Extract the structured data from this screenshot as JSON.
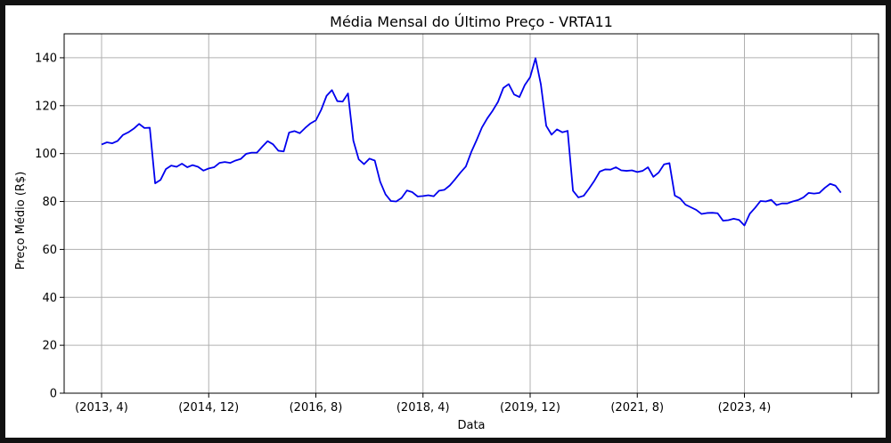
{
  "chart_data": {
    "type": "line",
    "title": "Média Mensal do Último Preço - VRTA11",
    "xlabel": "Data",
    "ylabel": "Preço Médio (R$)",
    "ylim": [
      0,
      150
    ],
    "yticks": [
      0,
      20,
      40,
      60,
      80,
      100,
      120,
      140
    ],
    "xticks": [
      "(2013, 4)",
      "(2014, 12)",
      "(2016, 8)",
      "(2018, 4)",
      "(2019, 12)",
      "(2021, 8)",
      "(2023, 4)",
      ""
    ],
    "grid": true,
    "legend": "none",
    "colors": {
      "line": "#0000ee",
      "grid": "#b0b0b0",
      "background": "#ffffff",
      "frame": "#111111"
    },
    "series": [
      {
        "x": [
          "2013-04",
          "2013-05",
          "2013-06",
          "2013-07",
          "2013-08",
          "2013-09",
          "2013-10",
          "2013-11",
          "2013-12",
          "2014-01",
          "2014-02",
          "2014-03",
          "2014-04",
          "2014-05",
          "2014-06",
          "2014-07",
          "2014-08",
          "2014-09",
          "2014-10",
          "2014-11",
          "2014-12",
          "2015-01",
          "2015-02",
          "2015-03",
          "2015-04",
          "2015-05",
          "2015-06",
          "2015-07",
          "2015-08",
          "2015-09",
          "2015-10",
          "2015-11",
          "2015-12",
          "2016-01",
          "2016-02",
          "2016-03",
          "2016-04",
          "2016-05",
          "2016-06",
          "2016-07",
          "2016-08",
          "2016-09",
          "2016-10",
          "2016-11",
          "2016-12",
          "2017-01",
          "2017-02",
          "2017-03",
          "2017-04",
          "2017-05",
          "2017-06",
          "2017-07",
          "2017-08",
          "2017-09",
          "2017-10",
          "2017-11",
          "2017-12",
          "2018-01",
          "2018-02",
          "2018-03",
          "2018-04",
          "2018-05",
          "2018-06",
          "2018-07",
          "2018-08",
          "2018-09",
          "2018-10",
          "2018-11",
          "2018-12",
          "2019-01",
          "2019-02",
          "2019-03",
          "2019-04",
          "2019-05",
          "2019-06",
          "2019-07",
          "2019-08",
          "2019-09",
          "2019-10",
          "2019-11",
          "2019-12",
          "2020-01",
          "2020-02",
          "2020-03",
          "2020-04",
          "2020-05",
          "2020-06",
          "2020-07",
          "2020-08",
          "2020-09",
          "2020-10",
          "2020-11",
          "2020-12",
          "2021-01",
          "2021-02",
          "2021-03",
          "2021-04",
          "2021-05",
          "2021-06",
          "2021-07",
          "2021-08",
          "2021-09",
          "2021-10",
          "2021-11",
          "2021-12",
          "2022-01",
          "2022-02",
          "2022-03",
          "2022-04",
          "2022-05",
          "2022-06",
          "2022-07",
          "2022-08",
          "2022-09",
          "2022-10",
          "2022-11",
          "2022-12",
          "2023-01",
          "2023-02",
          "2023-03",
          "2023-04",
          "2023-05",
          "2023-06",
          "2023-07",
          "2023-08",
          "2023-09",
          "2023-10",
          "2023-11",
          "2023-12",
          "2024-01",
          "2024-02",
          "2024-03",
          "2024-04",
          "2024-05",
          "2024-06",
          "2024-07",
          "2024-08",
          "2024-09",
          "2024-10"
        ],
        "values": [
          103.8,
          104.7,
          104.3,
          105.3,
          107.8,
          108.9,
          110.4,
          112.4,
          110.7,
          110.8,
          87.6,
          89.0,
          93.5,
          95.0,
          94.5,
          95.8,
          94.3,
          95.2,
          94.5,
          92.9,
          93.8,
          94.3,
          96.1,
          96.5,
          96.1,
          97.1,
          97.8,
          99.9,
          100.4,
          100.4,
          102.9,
          105.2,
          103.9,
          101.2,
          100.9,
          108.8,
          109.4,
          108.5,
          110.7,
          112.6,
          113.9,
          118.3,
          124.1,
          126.5,
          121.9,
          121.7,
          125.1,
          105.4,
          97.6,
          95.6,
          97.9,
          97.1,
          88.3,
          83.0,
          80.2,
          80.0,
          81.5,
          84.6,
          83.9,
          82.1,
          82.3,
          82.6,
          82.2,
          84.5,
          84.9,
          86.7,
          89.3,
          92.1,
          94.6,
          100.6,
          105.6,
          110.9,
          114.7,
          117.9,
          121.6,
          127.4,
          129.0,
          124.7,
          123.6,
          128.6,
          131.9,
          139.8,
          128.9,
          111.6,
          107.9,
          110.1,
          108.9,
          109.5,
          84.5,
          81.7,
          82.4,
          85.4,
          88.7,
          92.5,
          93.4,
          93.3,
          94.3,
          93.0,
          92.8,
          93.0,
          92.3,
          92.8,
          94.3,
          90.3,
          92.1,
          95.5,
          96.0,
          82.5,
          81.3,
          78.7,
          77.6,
          76.5,
          74.8,
          75.2,
          75.3,
          75.1,
          72.0,
          72.2,
          72.8,
          72.3,
          70.0,
          74.9,
          77.4,
          80.2,
          80.0,
          80.7,
          78.5,
          79.2,
          79.2,
          80.0,
          80.6,
          81.7,
          83.6,
          83.3,
          83.6,
          85.7,
          87.4,
          86.6,
          83.7
        ]
      }
    ]
  }
}
